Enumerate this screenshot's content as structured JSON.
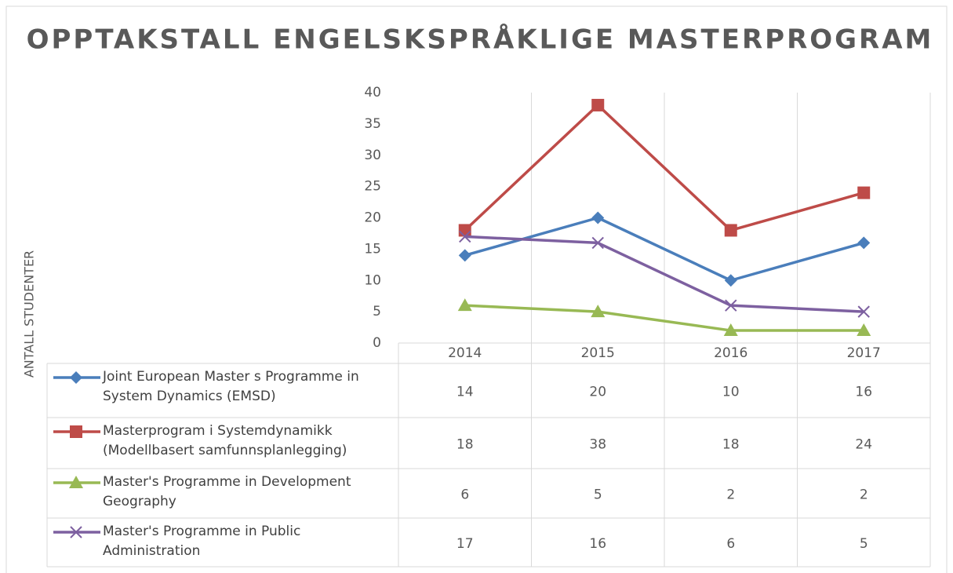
{
  "chart_data": {
    "type": "line",
    "title": "OPPTAKSTALL ENGELSKSPRÅKLIGE MASTERPROGRAM",
    "y_label": "ANTALL STUDENTER",
    "categories": [
      "2014",
      "2015",
      "2016",
      "2017"
    ],
    "ylim": [
      0,
      40
    ],
    "yticks": [
      0,
      5,
      10,
      15,
      20,
      25,
      30,
      35,
      40
    ],
    "grid": "vertical",
    "legend": "data-table",
    "series": [
      {
        "name": "Joint European Master s Programme in System Dynamics (EMSD)",
        "color": "#4a7ebb",
        "marker": "diamond",
        "values": [
          14,
          20,
          10,
          16
        ]
      },
      {
        "name": "Masterprogram i Systemdynamikk (Modellbasert samfunnsplanlegging)",
        "color": "#be4b48",
        "marker": "square",
        "values": [
          18,
          38,
          18,
          24
        ]
      },
      {
        "name": "Master's Programme in Development Geography",
        "color": "#98b954",
        "marker": "triangle",
        "values": [
          6,
          5,
          2,
          2
        ]
      },
      {
        "name": "Master's Programme in Public Administration",
        "color": "#7d60a0",
        "marker": "x",
        "values": [
          17,
          16,
          6,
          5
        ]
      }
    ]
  }
}
